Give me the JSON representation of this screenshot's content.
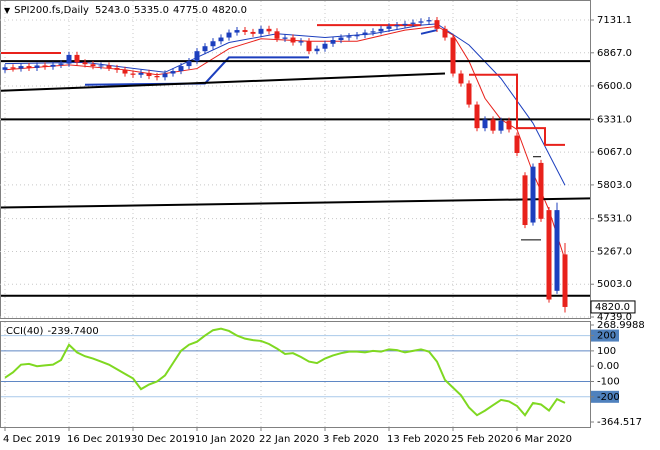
{
  "chart_data": [
    {
      "type": "candlestick",
      "symbol": "SPI200.fs,Daily",
      "header_labels": [
        "5243.0",
        "5335.0",
        "4775.0",
        "4820.0"
      ],
      "categories": [
        "4 Dec 2019",
        null,
        null,
        null,
        null,
        null,
        null,
        null,
        "16 Dec 2019",
        null,
        null,
        null,
        null,
        null,
        null,
        null,
        "30 Dec 2019",
        null,
        null,
        null,
        null,
        null,
        null,
        null,
        "10 Jan 2020",
        null,
        null,
        null,
        null,
        null,
        null,
        null,
        "22 Jan 2020",
        null,
        null,
        null,
        null,
        null,
        null,
        null,
        "3 Feb 2020",
        null,
        null,
        null,
        null,
        null,
        null,
        null,
        "13 Feb 2020",
        null,
        null,
        null,
        null,
        null,
        null,
        null,
        "25 Feb 2020",
        null,
        null,
        null,
        null,
        null,
        null,
        null,
        "6 Mar 2020",
        null,
        null,
        null,
        null,
        null,
        null
      ],
      "open": [
        6730,
        6750,
        6740,
        6760,
        6745,
        6765,
        6755,
        6770,
        6780,
        6850,
        6790,
        6775,
        6760,
        6765,
        6745,
        6730,
        6700,
        6690,
        6705,
        6680,
        6670,
        6700,
        6720,
        6760,
        6800,
        6880,
        6920,
        6960,
        6990,
        7030,
        7050,
        7035,
        7020,
        7060,
        7040,
        6980,
        6990,
        6950,
        6960,
        6880,
        6900,
        6940,
        6970,
        6990,
        7000,
        7010,
        7030,
        7040,
        7060,
        7080,
        7090,
        7100,
        7110,
        7120,
        7130,
        7060,
        6990,
        6700,
        6620,
        6450,
        6260,
        6330,
        6240,
        6320,
        6200,
        5880,
        5500,
        5980,
        5600,
        4950,
        5243
      ],
      "high": [
        6775,
        6775,
        6785,
        6785,
        6790,
        6790,
        6795,
        6805,
        6875,
        6875,
        6815,
        6800,
        6790,
        6790,
        6770,
        6755,
        6725,
        6730,
        6730,
        6705,
        6725,
        6745,
        6785,
        6825,
        6905,
        6945,
        6985,
        7015,
        7055,
        7075,
        7075,
        7060,
        7085,
        7085,
        7065,
        7015,
        7015,
        6985,
        6985,
        6925,
        6965,
        6995,
        7015,
        7025,
        7035,
        7055,
        7065,
        7085,
        7105,
        7115,
        7125,
        7135,
        7145,
        7155,
        7155,
        7085,
        7015,
        6725,
        6645,
        6475,
        6355,
        6355,
        6345,
        6345,
        6225,
        5905,
        5975,
        6005,
        5625,
        5660,
        5335
      ],
      "low": [
        6705,
        6715,
        6715,
        6720,
        6720,
        6730,
        6730,
        6745,
        6755,
        6765,
        6750,
        6735,
        6735,
        6720,
        6705,
        6675,
        6665,
        6665,
        6655,
        6645,
        6645,
        6675,
        6695,
        6735,
        6775,
        6855,
        6895,
        6935,
        6965,
        7005,
        7010,
        6995,
        6995,
        7015,
        6955,
        6955,
        6925,
        6925,
        6855,
        6855,
        6875,
        6915,
        6945,
        6965,
        6975,
        6985,
        7005,
        7015,
        7035,
        7055,
        7065,
        7075,
        7085,
        7095,
        7035,
        6965,
        6675,
        6595,
        6425,
        6235,
        6235,
        6215,
        6215,
        6225,
        6035,
        5455,
        5475,
        5505,
        4855,
        4925,
        4775
      ],
      "close": [
        6750,
        6740,
        6760,
        6745,
        6765,
        6755,
        6770,
        6780,
        6850,
        6790,
        6775,
        6760,
        6765,
        6745,
        6730,
        6700,
        6690,
        6705,
        6680,
        6670,
        6700,
        6720,
        6760,
        6800,
        6880,
        6920,
        6960,
        6990,
        7030,
        7050,
        7035,
        7020,
        7060,
        7040,
        6980,
        6990,
        6950,
        6960,
        6880,
        6900,
        6940,
        6970,
        6990,
        7000,
        7010,
        7030,
        7040,
        7060,
        7080,
        7090,
        7100,
        7110,
        7120,
        7130,
        7060,
        6990,
        6700,
        6620,
        6450,
        6260,
        6330,
        6240,
        6320,
        6250,
        6060,
        5480,
        5950,
        5530,
        4880,
        5600,
        4820
      ],
      "up_color": "#1c3fbe",
      "down_color": "#e8211b",
      "lines": [
        {
          "color": "#e8211b",
          "width": 1,
          "x": [
            0,
            8,
            15,
            19,
            24,
            28,
            32,
            38,
            44,
            50,
            54,
            56,
            58,
            60,
            62,
            64,
            66,
            68,
            70
          ],
          "y": [
            6730,
            6770,
            6730,
            6690,
            6740,
            6900,
            6980,
            6960,
            6960,
            7050,
            7080,
            7010,
            6800,
            6500,
            6330,
            6250,
            5900,
            5600,
            5200
          ]
        },
        {
          "color": "#1c3fbe",
          "width": 1,
          "x": [
            0,
            10,
            20,
            28,
            34,
            40,
            46,
            52,
            54,
            58,
            62,
            66,
            70
          ],
          "y": [
            6780,
            6790,
            6710,
            6950,
            7020,
            6990,
            7020,
            7090,
            7100,
            6930,
            6660,
            6300,
            5800
          ]
        },
        {
          "color": "#1c3fbe",
          "width": 2,
          "x": [
            10,
            25,
            28,
            38
          ],
          "y": [
            6610,
            6620,
            6830,
            6830
          ]
        },
        {
          "color": "#1c3fbe",
          "width": 2,
          "x": [
            52,
            54
          ],
          "y": [
            7020,
            7050
          ]
        },
        {
          "color": "#000000",
          "width": 2,
          "x": [
            -1,
            74
          ],
          "y": [
            6800,
            6800
          ]
        },
        {
          "color": "#000000",
          "width": 2,
          "x": [
            -1,
            55
          ],
          "y": [
            6560,
            6700
          ]
        },
        {
          "color": "#000000",
          "width": 2,
          "x": [
            -1,
            74
          ],
          "y": [
            6331,
            6331
          ]
        },
        {
          "color": "#000000",
          "width": 2,
          "x": [
            -1,
            74
          ],
          "y": [
            5620,
            5695
          ]
        },
        {
          "color": "#000000",
          "width": 2,
          "x": [
            -1,
            74
          ],
          "y": [
            4910,
            4910
          ]
        },
        {
          "color": "#e8211b",
          "width": 2,
          "x": [
            -1,
            7
          ],
          "y": [
            6865,
            6865
          ]
        },
        {
          "color": "#e8211b",
          "width": 2,
          "x": [
            39,
            52
          ],
          "y": [
            7090,
            7090
          ]
        },
        {
          "color": "#e8211b",
          "width": 2,
          "x": [
            58,
            64,
            64,
            67.5,
            67.5,
            70
          ],
          "y": [
            6690,
            6690,
            6260,
            6260,
            6125,
            6125
          ]
        },
        {
          "color": "#000000",
          "width": 1,
          "x": [
            64.5,
            67
          ],
          "y": [
            5360,
            5360
          ]
        },
        {
          "color": "#000000",
          "width": 1,
          "x": [
            66,
            67
          ],
          "y": [
            6030,
            6030
          ]
        }
      ],
      "last_price": {
        "value": 4820,
        "label": "4820.0"
      },
      "ylim": [
        4731,
        7252
      ],
      "yticks": [
        7131.1,
        {
          "value": 6867,
          "label": "6867.0"
        },
        {
          "value": 6600,
          "label": "6600.0"
        },
        {
          "value": 6331,
          "label": "6331.0"
        },
        {
          "value": 6067,
          "label": "6067.0"
        },
        {
          "value": 5803,
          "label": "5803.0"
        },
        {
          "value": 5531,
          "label": "5531.0"
        },
        {
          "value": 5267,
          "label": "5267.0"
        },
        {
          "value": 5003,
          "label": "5003.0"
        },
        {
          "value": 4739,
          "label": "4739.0"
        }
      ],
      "grid": true
    },
    {
      "type": "line",
      "title": "CCI(40)",
      "value_label": "-239.7400",
      "color": "#7fd821",
      "values": [
        -75,
        -40,
        10,
        15,
        0,
        5,
        10,
        40,
        140,
        90,
        65,
        50,
        30,
        10,
        -20,
        -50,
        -80,
        -150,
        -120,
        -100,
        -60,
        20,
        100,
        140,
        160,
        200,
        235,
        245,
        230,
        200,
        180,
        170,
        165,
        145,
        115,
        80,
        85,
        60,
        30,
        20,
        50,
        70,
        85,
        95,
        95,
        90,
        100,
        95,
        110,
        105,
        90,
        100,
        110,
        95,
        30,
        -90,
        -140,
        -190,
        -270,
        -320,
        -290,
        -255,
        -220,
        -230,
        -260,
        -320,
        -240,
        -250,
        -290,
        -215,
        -239.74
      ],
      "ylim": [
        -364.517,
        268.9988
      ],
      "yticks": [
        268.9988,
        200,
        100,
        {
          "value": 0,
          "label": "0.00"
        },
        -100,
        -200,
        -364.517
      ],
      "levels": [
        {
          "value": 200,
          "color": "#a9c9ea",
          "boxed": true
        },
        {
          "value": 100,
          "color": "#5f87c4",
          "boxed": false
        },
        {
          "value": -100,
          "color": "#5f87c4",
          "boxed": false
        },
        {
          "value": -200,
          "color": "#a9c9ea",
          "boxed": true
        }
      ],
      "box_color": "#4f81bd"
    }
  ]
}
